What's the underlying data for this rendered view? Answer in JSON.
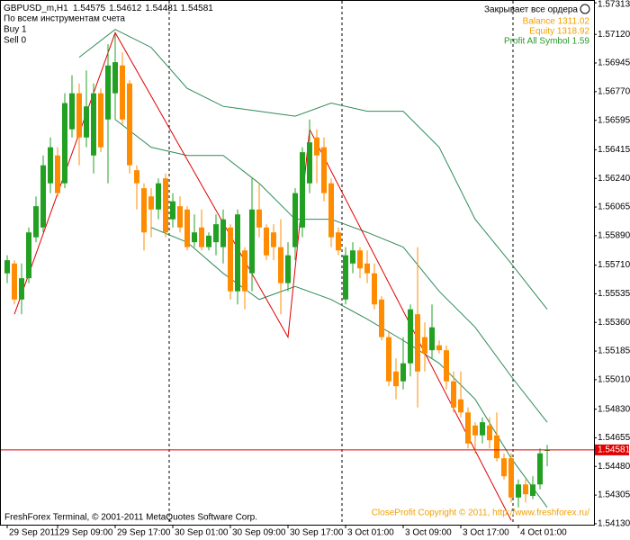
{
  "header": {
    "symbol": "GBPUSD_m,H1",
    "mode": "По всем инструментам счета",
    "buy": "Buy 1",
    "sell": "Sell 0"
  },
  "panel": {
    "title": "Закрывает все ордера",
    "balance": "Balance 1311.02",
    "equity": "Equity 1318.92",
    "profit": "Profit All Symbol 1.59"
  },
  "footer": {
    "left": "FreshForex Terminal, © 2001-2011 MetaQuotes Software Corp.",
    "right": "CloseProfit Copyright © 2011, http://www.freshforex.ru/"
  },
  "chart_data": {
    "type": "candlestick",
    "categories": [
      "29 Sep 2011",
      null,
      null,
      null,
      null,
      null,
      null,
      "29 Sep 09:00",
      null,
      null,
      null,
      null,
      null,
      null,
      null,
      "29 Sep 17:00",
      null,
      null,
      null,
      null,
      null,
      null,
      null,
      "30 Sep 01:00",
      null,
      null,
      null,
      null,
      null,
      null,
      null,
      "30 Sep 09:00",
      null,
      null,
      null,
      null,
      null,
      null,
      null,
      "30 Sep 17:00",
      null,
      null,
      null,
      null,
      null,
      null,
      null,
      "3 Oct 01:00",
      null,
      null,
      null,
      null,
      null,
      null,
      null,
      "3 Oct 09:00",
      null,
      null,
      null,
      null,
      null,
      null,
      null,
      "3 Oct 17:00",
      null,
      null,
      null,
      null,
      null,
      null,
      null,
      "4 Oct 01:00",
      null,
      null,
      null,
      null
    ],
    "open": [
      1.5566,
      1.5572,
      1.555,
      1.5563,
      1.5588,
      1.5594,
      1.5621,
      1.5638,
      1.5621,
      1.5654,
      1.5676,
      1.5649,
      1.5638,
      1.5676,
      1.566,
      1.5676,
      1.5693,
      1.5682,
      1.5629,
      1.5618,
      1.5613,
      1.5605,
      1.5624,
      1.5599,
      1.5607,
      1.5605,
      1.5585,
      1.5594,
      1.5582,
      1.5585,
      1.5582,
      1.5594,
      1.5555,
      1.558,
      1.5566,
      1.5605,
      1.5594,
      1.5591,
      1.5582,
      1.556,
      1.5582,
      1.5594,
      1.5621,
      1.5649,
      1.5643,
      1.5621,
      1.5591,
      1.555,
      1.5572,
      1.558,
      1.5572,
      1.5566,
      1.555,
      1.5527,
      1.5506,
      1.55,
      1.5511,
      1.5541,
      1.5527,
      1.5519,
      1.5522,
      1.5519,
      1.55,
      1.5489,
      1.5481,
      1.5473,
      1.5467,
      1.5473,
      1.5467,
      1.5453,
      1.5453,
      1.5429,
      1.5437,
      1.543,
      1.5437,
      1.54575
    ],
    "high": [
      1.5577,
      1.5574,
      1.5572,
      1.5594,
      1.5613,
      1.5638,
      1.5649,
      1.5643,
      1.5676,
      1.5687,
      1.5682,
      1.569,
      1.5682,
      1.5679,
      1.5706,
      1.5712,
      1.5701,
      1.5684,
      1.5632,
      1.5621,
      1.5618,
      1.5624,
      1.5627,
      1.5615,
      1.5613,
      1.5607,
      1.5602,
      1.5605,
      1.5591,
      1.5602,
      1.5605,
      1.5596,
      1.5605,
      1.5582,
      1.5624,
      1.5621,
      1.5596,
      1.5596,
      1.5599,
      1.5585,
      1.5618,
      1.5643,
      1.566,
      1.5654,
      1.5649,
      1.5624,
      1.5594,
      1.5582,
      1.5585,
      1.5582,
      1.558,
      1.5572,
      1.5552,
      1.553,
      1.5514,
      1.5527,
      1.5547,
      1.5582,
      1.5536,
      1.5547,
      1.5525,
      1.5522,
      1.5506,
      1.5506,
      1.5484,
      1.5475,
      1.5478,
      1.5478,
      1.5481,
      1.5456,
      1.5456,
      1.544,
      1.544,
      1.5442,
      1.5459,
      1.54612
    ],
    "low": [
      1.556,
      1.5547,
      1.5541,
      1.556,
      1.5585,
      1.5591,
      1.5615,
      1.5613,
      1.5618,
      1.5649,
      1.5632,
      1.5643,
      1.5627,
      1.564,
      1.5621,
      1.566,
      1.5657,
      1.5627,
      1.5605,
      1.558,
      1.5588,
      1.5599,
      1.5588,
      1.5594,
      1.5591,
      1.558,
      1.5582,
      1.558,
      1.558,
      1.5577,
      1.5572,
      1.555,
      1.5547,
      1.5544,
      1.5555,
      1.5588,
      1.5574,
      1.5574,
      1.5541,
      1.5555,
      1.5574,
      1.5588,
      1.5615,
      1.5621,
      1.561,
      1.5582,
      1.5577,
      1.5547,
      1.5566,
      1.5563,
      1.556,
      1.5544,
      1.5525,
      1.5497,
      1.5489,
      1.5495,
      1.5503,
      1.5484,
      1.5506,
      1.5514,
      1.5517,
      1.5495,
      1.5481,
      1.5478,
      1.5459,
      1.5456,
      1.5462,
      1.5459,
      1.5451,
      1.544,
      1.5426,
      1.5423,
      1.5426,
      1.5428,
      1.5434,
      1.54481
    ],
    "close": [
      1.5574,
      1.555,
      1.5563,
      1.5591,
      1.5607,
      1.5632,
      1.5643,
      1.5615,
      1.567,
      1.5676,
      1.5649,
      1.5668,
      1.5676,
      1.5643,
      1.5693,
      1.5695,
      1.566,
      1.5632,
      1.5621,
      1.5591,
      1.5605,
      1.5621,
      1.5591,
      1.561,
      1.5594,
      1.5582,
      1.5591,
      1.5582,
      1.5589,
      1.5596,
      1.5599,
      1.5555,
      1.5602,
      1.5555,
      1.5605,
      1.5594,
      1.5577,
      1.5582,
      1.556,
      1.5577,
      1.5615,
      1.564,
      1.5646,
      1.5638,
      1.5615,
      1.5588,
      1.558,
      1.5577,
      1.558,
      1.5569,
      1.5566,
      1.5547,
      1.5527,
      1.55,
      1.5497,
      1.5511,
      1.5544,
      1.5506,
      1.5517,
      1.5533,
      1.5519,
      1.55,
      1.5484,
      1.5481,
      1.5462,
      1.5467,
      1.5475,
      1.5464,
      1.5453,
      1.5442,
      1.5429,
      1.5437,
      1.5431,
      1.5437,
      1.5456,
      1.54581
    ],
    "up_color": "#22a022",
    "down_color": "#ff8c00",
    "ylim": [
      1.54124,
      1.5733
    ],
    "yticks": [
      1.57313,
      {
        "value": 1.5712,
        "label": "1.57120"
      },
      1.56945,
      {
        "value": 1.5677,
        "label": "1.56770"
      },
      1.56595,
      1.56415,
      {
        "value": 1.5624,
        "label": "1.56240"
      },
      1.56065,
      {
        "value": 1.5589,
        "label": "1.55890"
      },
      {
        "value": 1.5571,
        "label": "1.55710"
      },
      1.55535,
      {
        "value": 1.5536,
        "label": "1.55360"
      },
      1.55185,
      {
        "value": 1.5501,
        "label": "1.55010"
      },
      {
        "value": 1.5483,
        "label": "1.54830"
      },
      1.54655,
      {
        "value": 1.5448,
        "label": "1.54480"
      },
      1.54305,
      {
        "value": 1.5413,
        "label": "1.54130"
      }
    ],
    "overlays": [
      {
        "color": "#2e8b57",
        "x": [
          10,
          15,
          20,
          25,
          30,
          35,
          40,
          45,
          50,
          55,
          60,
          65,
          70,
          75
        ],
        "values": [
          1.5698,
          1.5715,
          1.5704,
          1.5679,
          1.5668,
          1.5665,
          1.5662,
          1.567,
          1.5665,
          1.5665,
          1.5643,
          1.5599,
          1.5572,
          1.5544
        ]
      },
      {
        "color": "#2e8b57",
        "x": [
          15,
          20,
          25,
          30,
          35,
          40,
          45,
          50,
          55,
          60,
          65,
          70,
          75
        ],
        "values": [
          1.566,
          1.5643,
          1.5638,
          1.5638,
          1.5621,
          1.5599,
          1.5599,
          1.5591,
          1.5582,
          1.5555,
          1.5533,
          1.5503,
          1.5475
        ]
      },
      {
        "color": "#2e8b57",
        "x": [
          20,
          25,
          30,
          35,
          40,
          45,
          50,
          55,
          60,
          65,
          70,
          75
        ],
        "values": [
          1.5594,
          1.5585,
          1.5566,
          1.555,
          1.5558,
          1.555,
          1.5538,
          1.5525,
          1.5511,
          1.5489,
          1.5453,
          1.5423
        ]
      },
      {
        "color": "#e00000",
        "x": [
          1,
          15,
          39,
          42,
          70
        ],
        "values": [
          1.5541,
          1.5713,
          1.5527,
          1.5654,
          1.5415
        ]
      }
    ]
  }
}
